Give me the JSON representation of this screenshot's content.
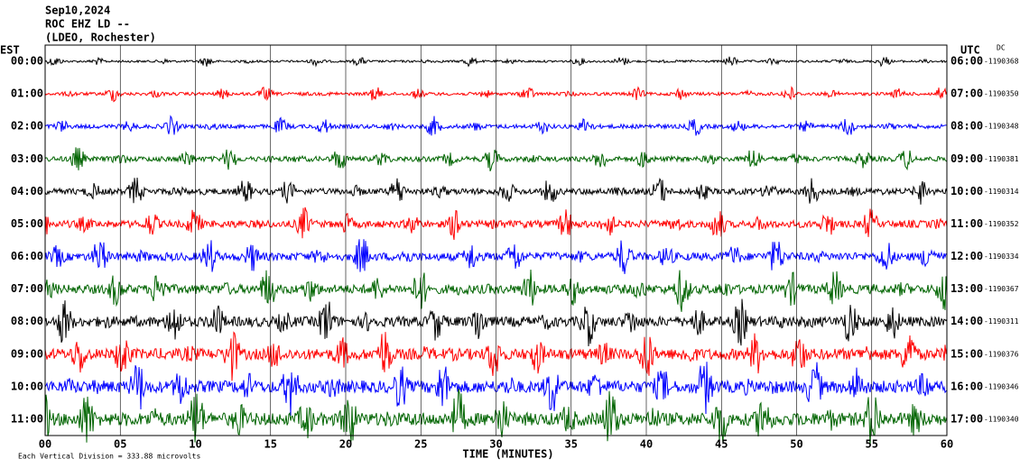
{
  "chart_data": {
    "type": "helicorder",
    "title_lines": [
      "Sep10,2024",
      "ROC EHZ LD --",
      "(LDEO, Rochester)"
    ],
    "left_axis_label": "EST",
    "right_axis_label": "UTC",
    "dc_label": "DC",
    "x_label": "TIME (MINUTES)",
    "scale_note": "Each Vertical Division = 333.88 microvolts",
    "xlim": [
      0,
      60
    ],
    "xticks": [
      {
        "value": 0,
        "label": "00"
      },
      {
        "value": 5,
        "label": "05"
      },
      10,
      15,
      20,
      25,
      30,
      35,
      40,
      45,
      50,
      55,
      60
    ],
    "grid": true,
    "rows": [
      {
        "est": "00:00",
        "utc": "06:00",
        "dc": "-1190368",
        "color": "#000000"
      },
      {
        "est": "01:00",
        "utc": "07:00",
        "dc": "-1190350",
        "color": "#ff0000"
      },
      {
        "est": "02:00",
        "utc": "08:00",
        "dc": "-1190348",
        "color": "#0000ff"
      },
      {
        "est": "03:00",
        "utc": "09:00",
        "dc": "-1190381",
        "color": "#006400"
      },
      {
        "est": "04:00",
        "utc": "10:00",
        "dc": "-1190314",
        "color": "#000000"
      },
      {
        "est": "05:00",
        "utc": "11:00",
        "dc": "-1190352",
        "color": "#ff0000"
      },
      {
        "est": "06:00",
        "utc": "12:00",
        "dc": "-1190334",
        "color": "#0000ff"
      },
      {
        "est": "07:00",
        "utc": "13:00",
        "dc": "-1190367",
        "color": "#006400"
      },
      {
        "est": "08:00",
        "utc": "14:00",
        "dc": "-1190311",
        "color": "#000000"
      },
      {
        "est": "09:00",
        "utc": "15:00",
        "dc": "-1190376",
        "color": "#ff0000"
      },
      {
        "est": "10:00",
        "utc": "16:00",
        "dc": "-1190346",
        "color": "#0000ff"
      },
      {
        "est": "11:00",
        "utc": "17:00",
        "dc": "-1190340",
        "color": "#006400"
      }
    ]
  }
}
